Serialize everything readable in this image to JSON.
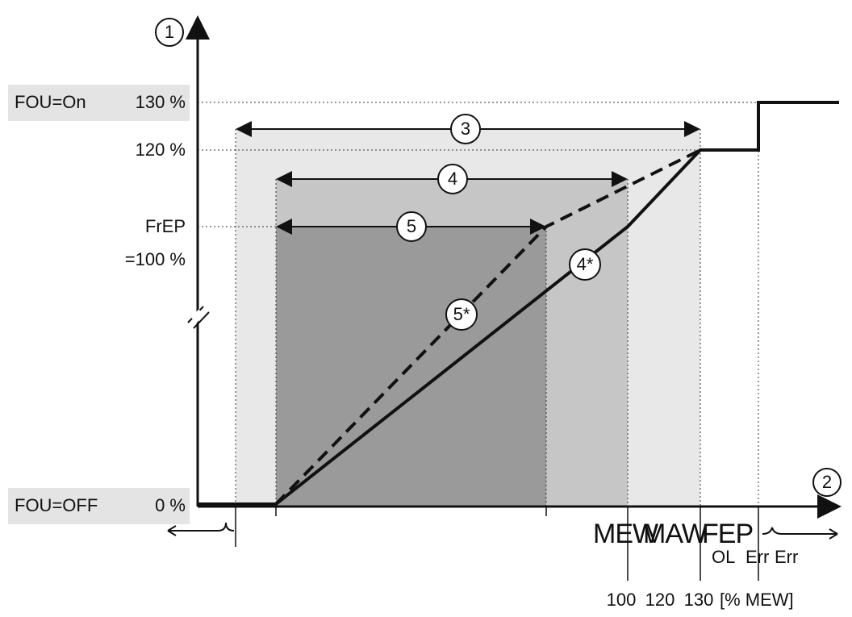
{
  "axes": {
    "y_marker": "1",
    "x_marker": "2"
  },
  "y_labels": {
    "fou_on": "FOU=On",
    "p130": "130 %",
    "p120": "120 %",
    "frep": "FrEP",
    "p100": "=100 %",
    "fou_off": "FOU=OFF",
    "p0": "0 %"
  },
  "ranges": {
    "r3": "3",
    "r4": "4",
    "r5": "5",
    "c4": "4*",
    "c5": "5*"
  },
  "x_labels": {
    "mew": "MEW",
    "maw": "MAW",
    "fep": "FEP",
    "ol": "OL",
    "err1": "Err",
    "err2": "Err",
    "v100": "100",
    "v120": "120",
    "v130": "130",
    "unit": "[% MEW]"
  }
}
